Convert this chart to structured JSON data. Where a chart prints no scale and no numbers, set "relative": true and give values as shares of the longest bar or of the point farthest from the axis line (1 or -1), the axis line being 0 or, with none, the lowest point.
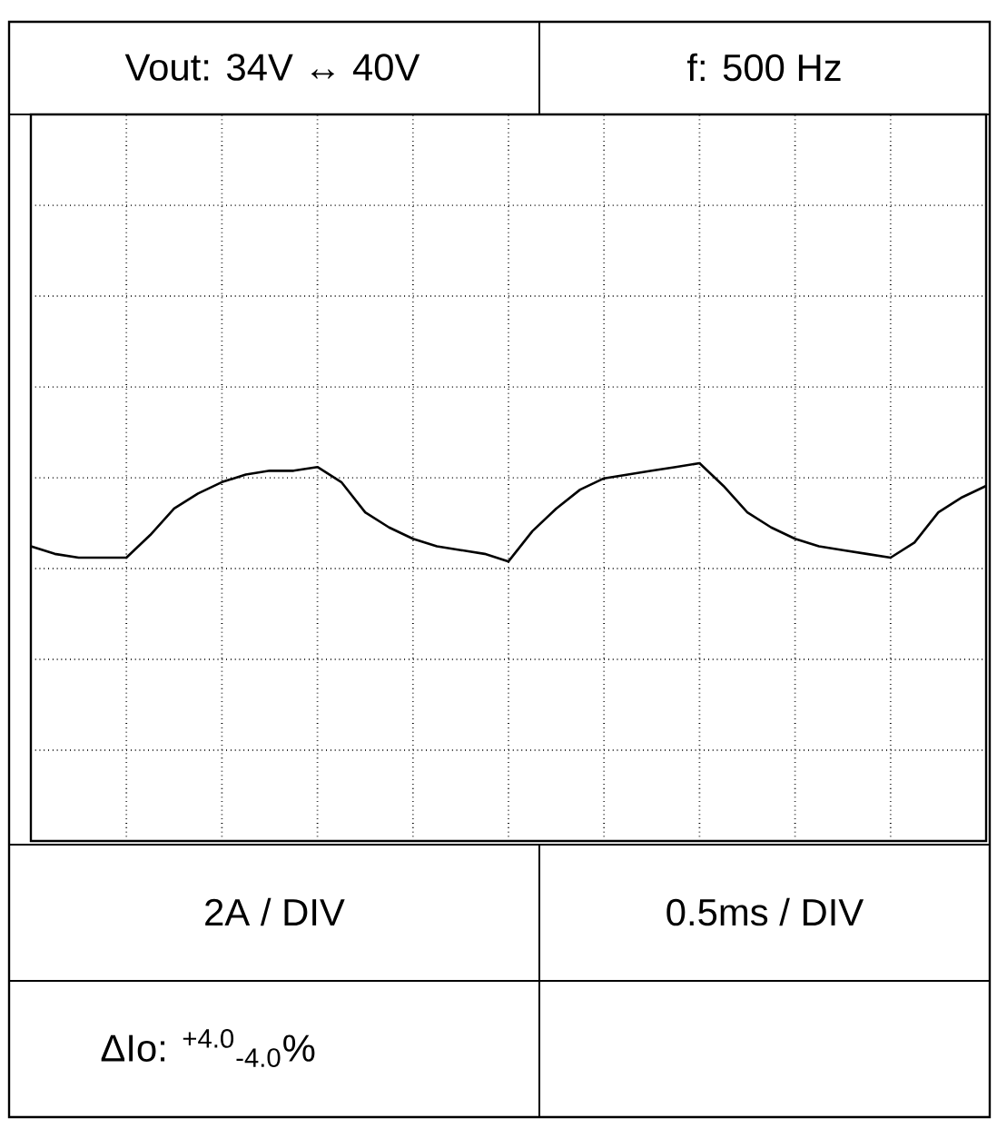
{
  "chart_data": {
    "type": "line",
    "relative": true,
    "grid": true,
    "categories": [
      null,
      null,
      null,
      null,
      null,
      null,
      null,
      null,
      null,
      null,
      null,
      null,
      null,
      null,
      null,
      null,
      null,
      null,
      null,
      null,
      null,
      null,
      null,
      null,
      null,
      null,
      null,
      null,
      null,
      null,
      null,
      null,
      null,
      null,
      null,
      null,
      null,
      null,
      null,
      null,
      null
    ],
    "series": [
      {
        "color": "#000000",
        "values": [
          0.78,
          0.76,
          0.75,
          0.75,
          0.75,
          0.81,
          0.88,
          0.92,
          0.95,
          0.97,
          0.98,
          0.98,
          0.99,
          0.95,
          0.87,
          0.83,
          0.8,
          0.78,
          0.77,
          0.76,
          0.74,
          0.82,
          0.88,
          0.93,
          0.96,
          0.97,
          0.98,
          0.99,
          1,
          0.94,
          0.87,
          0.83,
          0.8,
          0.78,
          0.77,
          0.76,
          0.75,
          0.79,
          0.87,
          0.91,
          0.94
        ]
      }
    ],
    "annotations": [
      "Vout: 34V ↔ 40V",
      "f: 500 Hz",
      "2A / DIV",
      "0.5ms / DIV",
      "ΔIo: $^{+4.0}$$_{-4.0}$%"
    ]
  }
}
